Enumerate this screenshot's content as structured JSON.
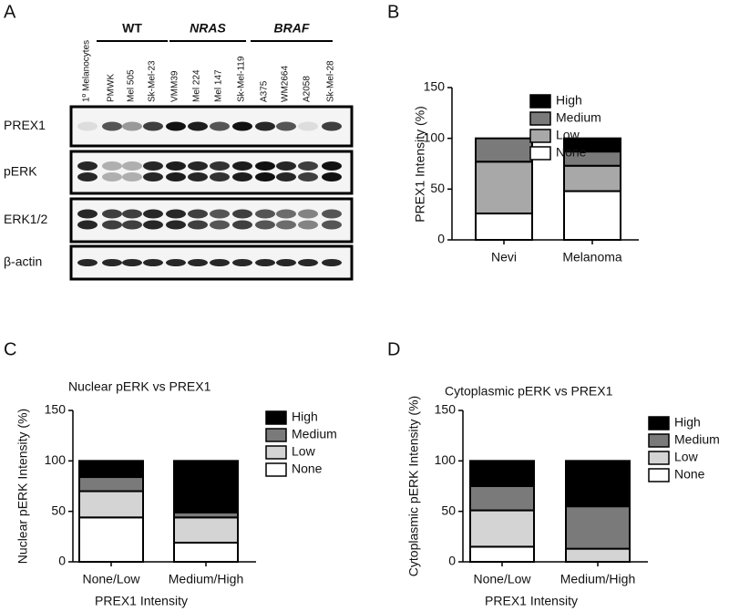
{
  "blot": {
    "panel_label": "A",
    "groups": [
      "WT",
      "NRAS",
      "BRAF"
    ],
    "lanes": [
      "1º Melanocytes",
      "PMWK",
      "Mel 505",
      "Sk-Mel-23",
      "VMM39",
      "Mel 224",
      "Mel 147",
      "Sk-Mel-119",
      "A375",
      "WM2664",
      "A2058",
      "Sk-Mel-28"
    ],
    "rows": [
      "PREX1",
      "pERK",
      "ERK1/2",
      "β-actin"
    ]
  },
  "chart_data": [
    {
      "type": "stacked_bar",
      "panel_label": "B",
      "ylabel": "PREX1 Intensity (%)",
      "categories": [
        "Nevi",
        "Melanoma"
      ],
      "ylim": [
        0,
        150
      ],
      "yticks": [
        0,
        50,
        100,
        150
      ],
      "series": [
        {
          "name": "None",
          "color": "#ffffff",
          "values": [
            26,
            48
          ]
        },
        {
          "name": "Low",
          "color": "#a8a8a8",
          "values": [
            51,
            25
          ]
        },
        {
          "name": "Medium",
          "color": "#7a7a7a",
          "values": [
            23,
            14
          ]
        },
        {
          "name": "High",
          "color": "#000000",
          "values": [
            0,
            13
          ]
        }
      ]
    },
    {
      "type": "stacked_bar",
      "panel_label": "C",
      "title": "Nuclear pERK vs PREX1",
      "ylabel": "Nuclear pERK Intensity (%)",
      "xlabel": "PREX1 Intensity",
      "categories": [
        "None/Low",
        "Medium/High"
      ],
      "ylim": [
        0,
        150
      ],
      "yticks": [
        0,
        50,
        100,
        150
      ],
      "series": [
        {
          "name": "None",
          "color": "#ffffff",
          "values": [
            44,
            19
          ]
        },
        {
          "name": "Low",
          "color": "#d4d4d4",
          "values": [
            26,
            25
          ]
        },
        {
          "name": "Medium",
          "color": "#7a7a7a",
          "values": [
            14,
            5
          ]
        },
        {
          "name": "High",
          "color": "#000000",
          "values": [
            16,
            51
          ]
        }
      ]
    },
    {
      "type": "stacked_bar",
      "panel_label": "D",
      "title": "Cytoplasmic pERK vs PREX1",
      "ylabel": "Cytoplasmic pERK Intensity (%)",
      "xlabel": "PREX1 Intensity",
      "categories": [
        "None/Low",
        "Medium/High"
      ],
      "ylim": [
        0,
        150
      ],
      "yticks": [
        0,
        50,
        100,
        150
      ],
      "series": [
        {
          "name": "None",
          "color": "#ffffff",
          "values": [
            15,
            0
          ]
        },
        {
          "name": "Low",
          "color": "#d4d4d4",
          "values": [
            36,
            13
          ]
        },
        {
          "name": "Medium",
          "color": "#7a7a7a",
          "values": [
            24,
            42
          ]
        },
        {
          "name": "High",
          "color": "#000000",
          "values": [
            25,
            45
          ]
        }
      ]
    }
  ]
}
